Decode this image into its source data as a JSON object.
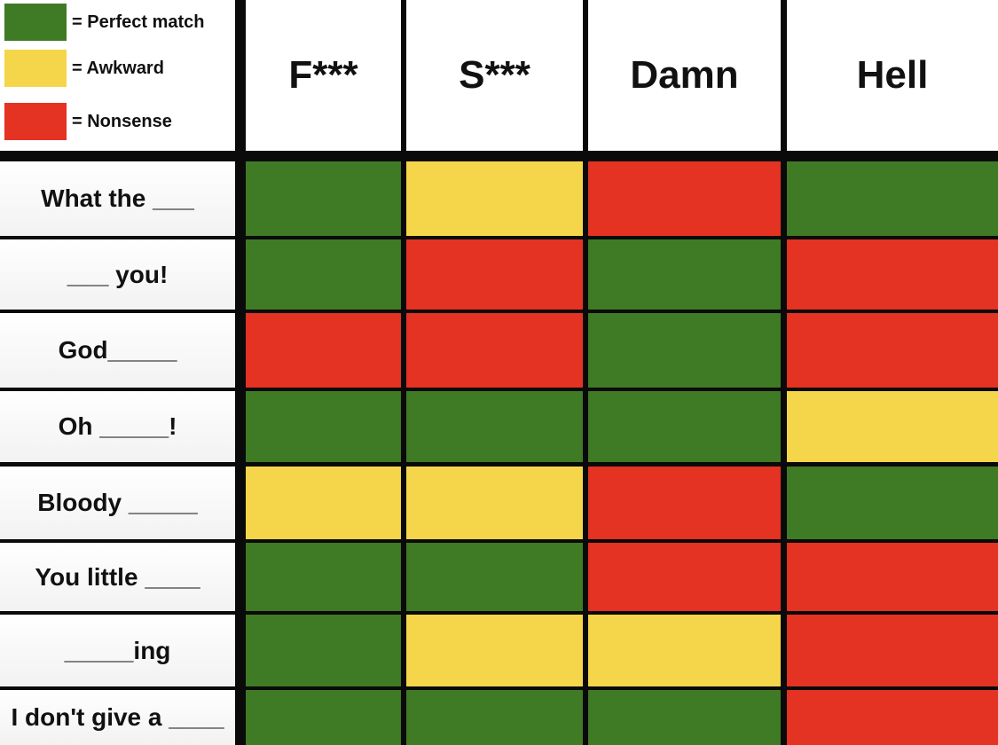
{
  "chart_data": {
    "type": "heatmap",
    "title": "",
    "legend": [
      {
        "label": "= Perfect match",
        "value": "G",
        "color": "#3f7a24"
      },
      {
        "label": "= Awkward",
        "value": "Y",
        "color": "#f5d54a"
      },
      {
        "label": "= Nonsense",
        "value": "R",
        "color": "#e43223"
      }
    ],
    "legend_placement": "top-left",
    "columns": [
      "F***",
      "S***",
      "Damn",
      "Hell"
    ],
    "rows": [
      "What the ___",
      "___ you!",
      "God_____",
      "Oh _____!",
      "Bloody _____",
      "You little ____",
      "_____ing",
      "I don't give a ____"
    ],
    "values": [
      [
        "G",
        "Y",
        "R",
        "G"
      ],
      [
        "G",
        "R",
        "G",
        "R"
      ],
      [
        "R",
        "R",
        "G",
        "R"
      ],
      [
        "G",
        "G",
        "G",
        "Y"
      ],
      [
        "Y",
        "Y",
        "R",
        "G"
      ],
      [
        "G",
        "G",
        "R",
        "R"
      ],
      [
        "G",
        "Y",
        "Y",
        "R"
      ],
      [
        "G",
        "G",
        "G",
        "R"
      ]
    ]
  }
}
